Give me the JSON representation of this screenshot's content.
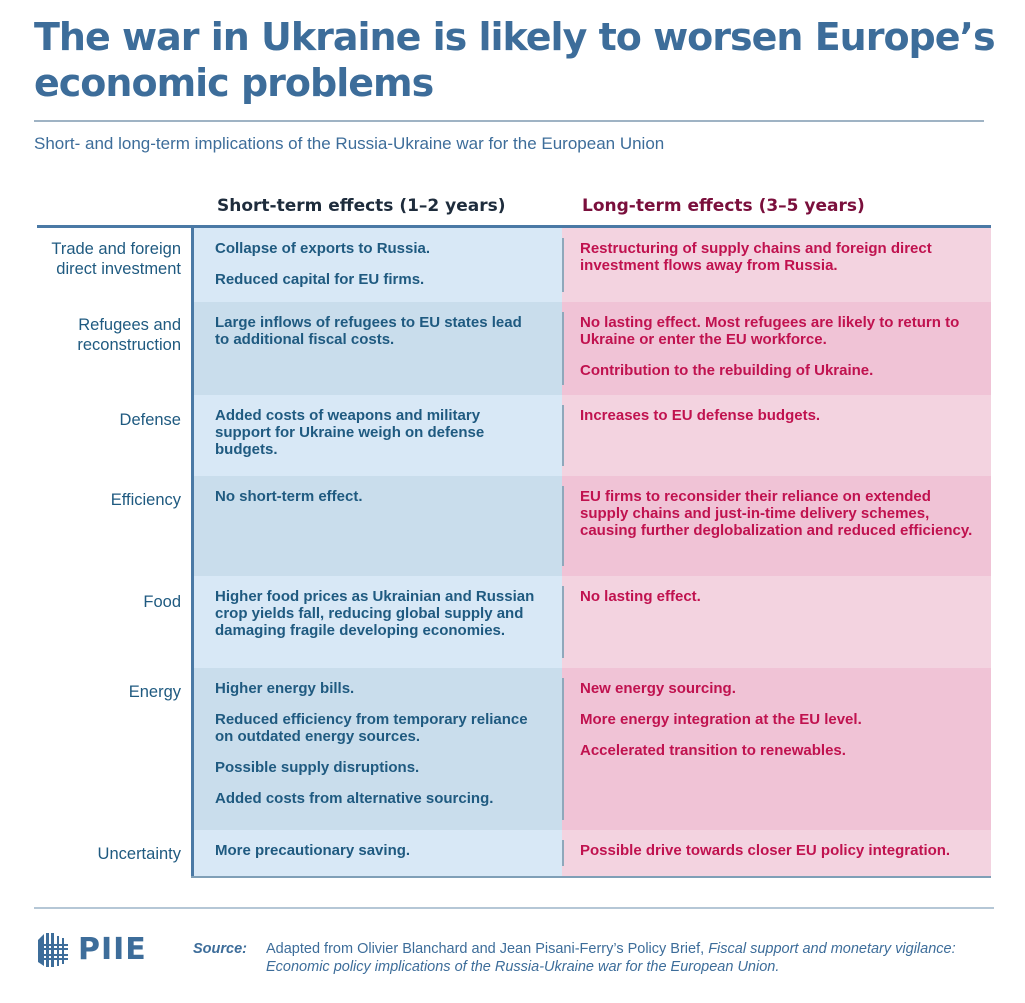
{
  "header": {
    "title": "The war in Ukraine is likely to worsen Europe’s economic problems",
    "subtitle": "Short- and long-term implications of the Russia-Ukraine war for the European Union"
  },
  "columns": {
    "short_term": "Short-term effects (1–2 years)",
    "long_term": "Long-term effects (3–5 years)"
  },
  "colors": {
    "brand_blue": "#3d6d9a",
    "short_text": "#1f5a80",
    "long_text": "#c0124f",
    "short_bg_light": "#d8e8f6",
    "short_bg_dark": "#c9ddec",
    "long_bg_light": "#f3d3e0",
    "long_bg_dark": "#f0c3d6"
  },
  "rows": [
    {
      "label": "Trade and foreign direct investment",
      "short": [
        "Collapse of exports to Russia.",
        "Reduced capital for EU firms."
      ],
      "long": [
        "Restructuring of supply chains and foreign direct investment flows away from Russia."
      ]
    },
    {
      "label": "Refugees and reconstruction",
      "short": [
        "Large inflows of refugees to EU states lead to additional fiscal costs."
      ],
      "long": [
        "No lasting effect. Most refugees are likely to return to Ukraine or enter the EU workforce.",
        "Contribution to the rebuilding of Ukraine."
      ]
    },
    {
      "label": "Defense",
      "short": [
        "Added costs of weapons and military support for Ukraine weigh on defense budgets."
      ],
      "long": [
        "Increases to EU defense budgets."
      ]
    },
    {
      "label": "Efficiency",
      "short": [
        "No short-term effect."
      ],
      "long": [
        "EU firms to reconsider their reliance on extended supply chains and just-in-time delivery schemes, causing further deglobalization and reduced efficiency."
      ]
    },
    {
      "label": "Food",
      "short": [
        "Higher food prices as Ukrainian and Russian crop yields fall, reducing global supply and damaging fragile developing economies."
      ],
      "long": [
        "No lasting effect."
      ]
    },
    {
      "label": "Energy",
      "short": [
        "Higher energy bills.",
        "Reduced efficiency from temporary reliance on outdated energy sources.",
        "Possible supply disruptions.",
        "Added costs from alternative sourcing."
      ],
      "long": [
        "New energy sourcing.",
        "More energy integration at the EU level.",
        "Accelerated transition to renewables."
      ]
    },
    {
      "label": "Uncertainty",
      "short": [
        "More precautionary saving."
      ],
      "long": [
        "Possible drive towards closer EU policy integration."
      ]
    }
  ],
  "footer": {
    "logo_text": "PIIE",
    "logo_icon": "building-grid-icon",
    "source_label": "Source:",
    "source_text": "Adapted from Olivier Blanchard and Jean Pisani-Ferry’s Policy Brief, ",
    "source_title": "Fiscal support and monetary vigilance: Economic policy implications of the Russia-Ukraine war for the European Union."
  }
}
